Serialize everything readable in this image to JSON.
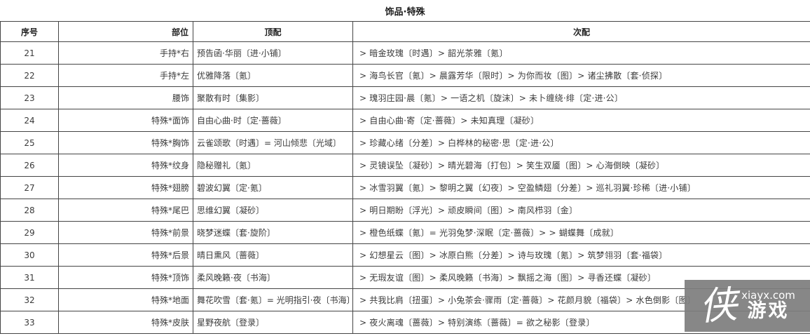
{
  "title": "饰品·特殊",
  "table": {
    "columns": [
      "序号",
      "部位",
      "顶配",
      "次配"
    ],
    "rows": [
      {
        "num": "21",
        "part": "手持*右",
        "top": "预告函·华丽〔进·小铺〕",
        "sec": "> 暗金玫瑰〔时遇〕> 韶光茶雅〔氪〕"
      },
      {
        "num": "22",
        "part": "手持*左",
        "top": "优雅降落〔氪〕",
        "sec": "> 海鸟长官〔氪〕> 晨露芳华〔限时〕> 为你而妆〔图〕> 诸尘拂散〔套·侦探〕"
      },
      {
        "num": "23",
        "part": "腰饰",
        "top": "聚散有时〔集影〕",
        "sec": "> 瑰羽庄园·晨〔氪〕> 一语之机〔旋沫〕> 未卜缠绕·绯〔定·进·公〕"
      },
      {
        "num": "24",
        "part": "特殊*面饰",
        "top": "自由心曲·时〔定·蔷薇〕",
        "sec": "> 自由心曲·寄〔定·蔷薇〕> 未知真理〔凝砂〕"
      },
      {
        "num": "25",
        "part": "特殊*胸饰",
        "top": "云雀颂歌〔时遇〕= 河山倾悲〔光域〕",
        "sec": "> 珍藏心绪〔分差〕> 白桦林的秘密·思〔定·进·公〕"
      },
      {
        "num": "26",
        "part": "特殊*纹身",
        "top": "隐秘赠礼〔氪〕",
        "sec": "> 灵镜误坠〔凝砂〕> 晴光碧海〔打包〕> 笑生双靥〔图〕> 心海倒映〔凝砂〕"
      },
      {
        "num": "27",
        "part": "特殊*翅膀",
        "top": "碧波幻翼〔定·氪〕",
        "sec": "> 冰雪羽翼〔氪〕> 黎明之翼〔幻夜〕> 空盈鳞翅〔分差〕> 巡礼羽翼·珍稀〔进·小铺〕"
      },
      {
        "num": "28",
        "part": "特殊*尾巴",
        "top": "思维幻翼〔凝砂〕",
        "sec": "> 明日期盼〔浮光〕> 顽皮瞬间〔图〕> 南风栉羽〔金〕"
      },
      {
        "num": "29",
        "part": "特殊*前景",
        "top": "晓梦迷蝶〔套·旋阶〕",
        "sec": "> 橙色纸蝶〔氪〕= 光羽兔梦·深眠〔定·蔷薇〕> > 蝴蝶舞〔成就〕"
      },
      {
        "num": "30",
        "part": "特殊*后景",
        "top": "晴日熏风〔蔷薇〕",
        "sec": "> 幻想星云〔图〕> 冰原白熊〔分差〕> 诗与玫瑰〔氪〕> 筑梦翎羽〔套·福袋〕"
      },
      {
        "num": "31",
        "part": "特殊*顶饰",
        "top": "柔风晚籁·夜〔书海〕",
        "sec": "> 无瑕友谊〔图〕> 柔风晚籁〔书海〕> 飘摇之海〔图〕> 寻香还蝶〔凝砂〕"
      },
      {
        "num": "32",
        "part": "特殊*地面",
        "top": "舞花吹雪〔套·氪〕= 光明指引·夜〔书海〕",
        "sec": "> 共我比肩〔扭蛋〕> 小兔茶会·骤雨〔定·蔷薇〕> 花颜月貌〔福袋〕> 水色倒影〔图〕"
      },
      {
        "num": "33",
        "part": "特殊*皮肤",
        "top": "星野夜航〔登录〕",
        "sec": "> 夜火离魂〔蔷薇〕> 特别演练〔蔷薇〕= 欲之秘影〔登录〕"
      }
    ]
  },
  "watermark": {
    "brand_char": "侠",
    "site": "xiayx.com",
    "brand_word": "游戏"
  },
  "colors": {
    "text": "#3a3a3a",
    "border": "#454545",
    "watermark_bg": "#7e7e7e",
    "watermark_text": "#ffffff",
    "background": "#ffffff"
  }
}
